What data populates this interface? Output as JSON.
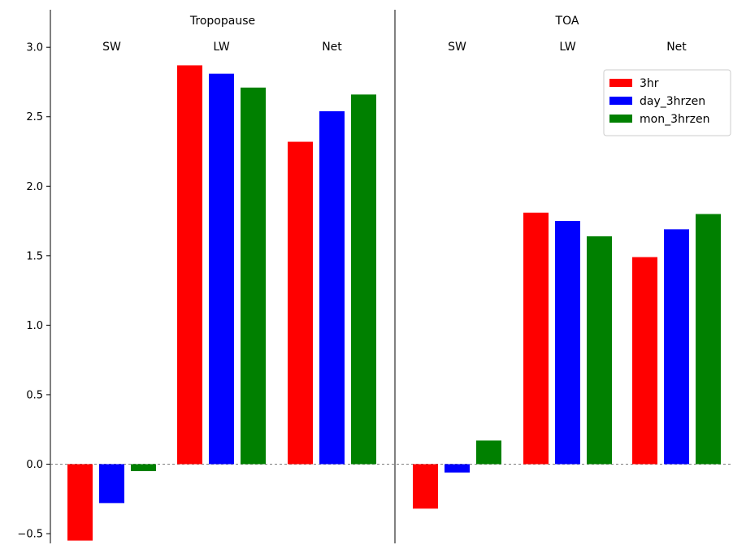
{
  "chart_data": {
    "type": "bar",
    "sections": [
      {
        "title": "Tropopause",
        "groups": [
          {
            "label": "SW",
            "values": [
              -0.55,
              -0.28,
              -0.05
            ]
          },
          {
            "label": "LW",
            "values": [
              2.87,
              2.81,
              2.71
            ]
          },
          {
            "label": "Net",
            "values": [
              2.32,
              2.54,
              2.66
            ]
          }
        ]
      },
      {
        "title": "TOA",
        "groups": [
          {
            "label": "SW",
            "values": [
              -0.32,
              -0.06,
              0.17
            ]
          },
          {
            "label": "LW",
            "values": [
              1.81,
              1.75,
              1.64
            ]
          },
          {
            "label": "Net",
            "values": [
              1.49,
              1.69,
              1.8
            ]
          }
        ]
      }
    ],
    "series": [
      {
        "name": "3hr",
        "color": "#ff0000"
      },
      {
        "name": "day_3hrzen",
        "color": "#0000ff"
      },
      {
        "name": "mon_3hrzen",
        "color": "#008000"
      }
    ],
    "ylim": [
      -0.57,
      3.27
    ],
    "yticks": [
      -0.5,
      0.0,
      0.5,
      1.0,
      1.5,
      2.0,
      2.5,
      3.0
    ],
    "ytick_labels": [
      "−0.5",
      "0.0",
      "0.5",
      "1.0",
      "1.5",
      "2.0",
      "2.5",
      "3.0"
    ],
    "zero_line": true,
    "legend_position": "top-right",
    "grid": false
  }
}
